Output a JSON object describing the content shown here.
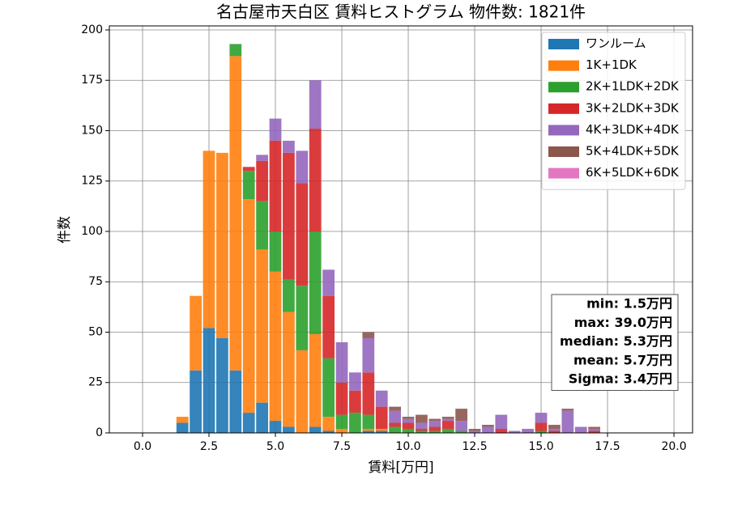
{
  "chart_data": {
    "type": "stacked-histogram",
    "title": "名古屋市天白区 賃料ヒストグラム 物件数: 1821件",
    "x_label": "賃料[万円]",
    "y_label": "件数",
    "bins": [
      1.25,
      1.75,
      2.25,
      2.75,
      3.25,
      3.75,
      4.25,
      4.75,
      5.25,
      5.75,
      6.25,
      6.75,
      7.25,
      7.75,
      8.25,
      8.75,
      9.25,
      9.75,
      10.25,
      10.75,
      11.25,
      11.75,
      12.25,
      12.75,
      13.25,
      13.75,
      14.25,
      14.75,
      15.25,
      15.75,
      16.25,
      16.75,
      17.25
    ],
    "series": [
      {
        "name": "ワンルーム",
        "color": "#1f77b4",
        "values": [
          5,
          31,
          52,
          47,
          31,
          10,
          15,
          6,
          3,
          0,
          3,
          1,
          0,
          0,
          1,
          1,
          0,
          0,
          0,
          0,
          0,
          0,
          0,
          0,
          0,
          0,
          0,
          0,
          0,
          0,
          0,
          0
        ]
      },
      {
        "name": "1K+1DK",
        "color": "#ff7f0e",
        "values": [
          3,
          37,
          88,
          92,
          156,
          106,
          76,
          74,
          57,
          41,
          46,
          7,
          2,
          0,
          1,
          1,
          0,
          0,
          0,
          0,
          0,
          0,
          0,
          0,
          0,
          0,
          0,
          0,
          0,
          0,
          0,
          0
        ]
      },
      {
        "name": "2K+1LDK+2DK",
        "color": "#2ca02c",
        "values": [
          0,
          0,
          0,
          0,
          6,
          14,
          24,
          20,
          16,
          32,
          51,
          29,
          7,
          10,
          7,
          0,
          3,
          2,
          1,
          1,
          2,
          1,
          0,
          0,
          0,
          0,
          0,
          1,
          0,
          0,
          0,
          0
        ]
      },
      {
        "name": "3K+2LDK+3DK",
        "color": "#d62728",
        "values": [
          0,
          0,
          0,
          0,
          0,
          2,
          20,
          45,
          63,
          51,
          51,
          31,
          16,
          11,
          21,
          11,
          2,
          3,
          1,
          2,
          4,
          0,
          0,
          0,
          2,
          0,
          0,
          4,
          1,
          0,
          0,
          1
        ]
      },
      {
        "name": "4K+3LDK+4DK",
        "color": "#9467bd",
        "values": [
          0,
          0,
          0,
          0,
          0,
          0,
          3,
          11,
          6,
          16,
          24,
          13,
          20,
          9,
          17,
          8,
          6,
          2,
          3,
          3,
          1,
          5,
          1,
          3,
          7,
          1,
          2,
          5,
          1,
          11,
          3,
          1
        ]
      },
      {
        "name": "5K+4LDK+5DK",
        "color": "#8c564b",
        "values": [
          0,
          0,
          0,
          0,
          0,
          0,
          0,
          0,
          0,
          0,
          0,
          0,
          0,
          0,
          3,
          0,
          2,
          1,
          4,
          1,
          1,
          6,
          1,
          1,
          0,
          0,
          0,
          0,
          2,
          1,
          0,
          1
        ]
      },
      {
        "name": "6K+5LDK+6DK",
        "color": "#e377c2",
        "values": [
          0,
          0,
          0,
          0,
          0,
          0,
          0,
          0,
          0,
          0,
          0,
          0,
          0,
          0,
          0,
          0,
          0,
          0,
          0,
          0,
          0,
          0,
          0,
          0,
          0,
          0,
          0,
          0,
          0,
          0,
          0,
          0
        ]
      }
    ],
    "xlim": [
      -1.25,
      20.7
    ],
    "ylim": [
      0,
      202
    ],
    "xticks": [
      0.0,
      2.5,
      5.0,
      7.5,
      10.0,
      12.5,
      15.0,
      17.5,
      20.0
    ],
    "xtick_labels": [
      "0.0",
      "2.5",
      "5.0",
      "7.5",
      "10.0",
      "12.5",
      "15.0",
      "17.5",
      "20.0"
    ],
    "yticks": [
      0,
      25,
      50,
      75,
      100,
      125,
      150,
      175,
      200
    ],
    "grid": true,
    "legend": "upper right",
    "stats": [
      "min: 1.5万円",
      "max: 39.0万円",
      "median: 5.3万円",
      "mean: 5.7万円",
      "Sigma: 3.4万円"
    ]
  }
}
